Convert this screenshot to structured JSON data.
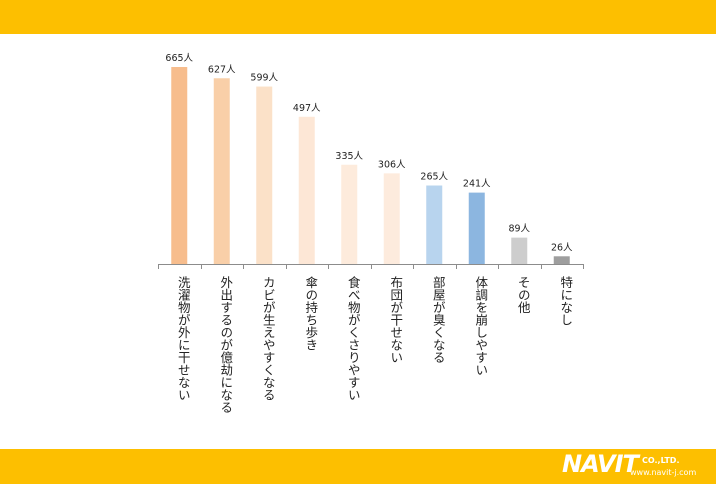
{
  "colors": {
    "band": "#fdbf00",
    "axis": "#8c8c8c",
    "label_text": "#222222"
  },
  "logo": {
    "name": "NAVIT",
    "company": "CO.,LTD.",
    "url": "www.navit-j.com"
  },
  "chart_data": {
    "type": "bar",
    "title": "",
    "xlabel": "",
    "ylabel": "",
    "ylim": [
      0,
      700
    ],
    "grid": false,
    "legend": "none",
    "unit_suffix": "人",
    "categories": [
      "洗濯物が外に干せない",
      "外出するのが億劫になる",
      "カビが生えやすくなる",
      "傘の持ち歩き",
      "食べ物がくさりやすい",
      "布団が干せない",
      "部屋が臭くなる",
      "体調を崩しやすい",
      "その他",
      "特になし"
    ],
    "values": [
      665,
      627,
      599,
      497,
      335,
      306,
      265,
      241,
      89,
      26
    ],
    "bar_colors": [
      "#f7bd8d",
      "#f9cfa8",
      "#fbe1c8",
      "#fde7d6",
      "#fdebdc",
      "#fdebdd",
      "#b8d4ee",
      "#8cb6e0",
      "#cdcdcd",
      "#9e9e9e"
    ]
  }
}
